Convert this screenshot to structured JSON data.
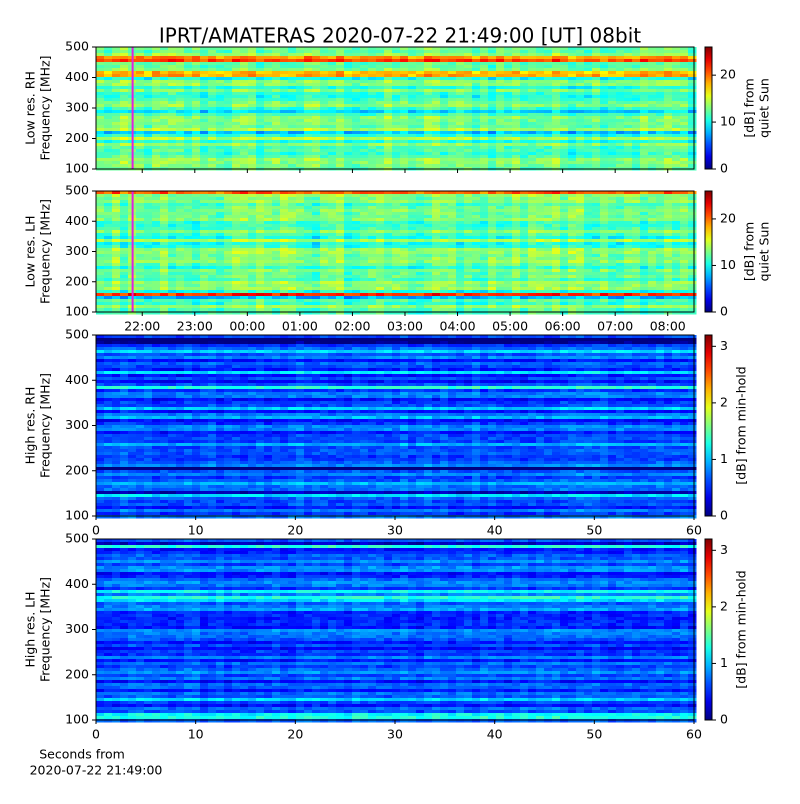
{
  "title": "IPRT/AMATERAS 2020-07-22 21:49:00 [UT]   08bit",
  "chart_data": [
    {
      "type": "heatmap",
      "ylabel": [
        "Low res. RH",
        "Frequency [MHz]"
      ],
      "xlim": [
        21.12,
        32.5
      ],
      "ylim": [
        100,
        500
      ],
      "yticks": [
        100,
        200,
        300,
        400,
        500
      ],
      "colormap": "jet",
      "clim": [
        0,
        26
      ],
      "cticks": [
        0,
        10,
        20
      ],
      "clabel": [
        "[dB] from",
        "quiet Sun"
      ],
      "marker": {
        "x": 21.8167,
        "color": "#e020e0"
      }
    },
    {
      "type": "heatmap",
      "ylabel": [
        "Low res. LH",
        "Frequency [MHz]"
      ],
      "xlim": [
        21.12,
        32.5
      ],
      "ylim": [
        100,
        500
      ],
      "yticks": [
        100,
        200,
        300,
        400,
        500
      ],
      "xticks": [
        {
          "value": 22,
          "label": "22:00"
        },
        {
          "value": 23,
          "label": "23:00"
        },
        {
          "value": 24,
          "label": "00:00"
        },
        {
          "value": 25,
          "label": "01:00"
        },
        {
          "value": 26,
          "label": "02:00"
        },
        {
          "value": 27,
          "label": "03:00"
        },
        {
          "value": 28,
          "label": "04:00"
        },
        {
          "value": 29,
          "label": "05:00"
        },
        {
          "value": 30,
          "label": "06:00"
        },
        {
          "value": 31,
          "label": "07:00"
        },
        {
          "value": 32,
          "label": "08:00"
        }
      ],
      "colormap": "jet",
      "clim": [
        0,
        26
      ],
      "cticks": [
        0,
        10,
        20
      ],
      "clabel": [
        "[dB] from",
        "quiet Sun"
      ],
      "marker": {
        "x": 21.8167,
        "color": "#e020e0"
      }
    },
    {
      "type": "heatmap",
      "ylabel": [
        "High res. RH",
        "Frequency [MHz]"
      ],
      "xlim": [
        0,
        60
      ],
      "xticks": [
        0,
        10,
        20,
        30,
        40,
        50,
        60
      ],
      "ylim": [
        100,
        500
      ],
      "yticks": [
        100,
        200,
        300,
        400,
        500
      ],
      "colormap": "jet",
      "clim": [
        0,
        3.2
      ],
      "cticks": [
        0,
        1,
        2,
        3
      ],
      "clabel": [
        "[dB] from min-hold"
      ]
    },
    {
      "type": "heatmap",
      "ylabel": [
        "High res. LH",
        "Frequency [MHz]"
      ],
      "xlim": [
        0,
        60
      ],
      "xticks": [
        0,
        10,
        20,
        30,
        40,
        50,
        60
      ],
      "ylim": [
        100,
        500
      ],
      "yticks": [
        100,
        200,
        300,
        400,
        500
      ],
      "colormap": "jet",
      "clim": [
        0,
        3.2
      ],
      "cticks": [
        0,
        1,
        2,
        3
      ],
      "clabel": [
        "[dB] from min-hold"
      ],
      "xlabel": [
        "Seconds from",
        "2020-07-22 21:49:00"
      ]
    }
  ]
}
